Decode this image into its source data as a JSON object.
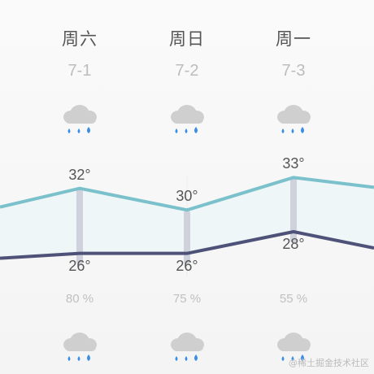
{
  "forecast": {
    "days": [
      {
        "day": "周六",
        "date": "7-1",
        "high": "32°",
        "low": "26°",
        "humidity": "80 %",
        "icon_top": "rain-cloud-icon",
        "icon_bottom": "rain-cloud-icon"
      },
      {
        "day": "周日",
        "date": "7-2",
        "high": "30°",
        "low": "26°",
        "humidity": "75 %",
        "icon_top": "rain-cloud-icon",
        "icon_bottom": "rain-cloud-icon"
      },
      {
        "day": "周一",
        "date": "7-3",
        "high": "33°",
        "low": "28°",
        "humidity": "55 %",
        "icon_top": "rain-cloud-icon",
        "icon_bottom": "rain-cloud-icon"
      }
    ]
  },
  "watermark": "@稀土掘金技术社区",
  "colors": {
    "high_line": "#7bc1cb",
    "low_line": "#4e5278",
    "area_fill": "#eef6f8",
    "cloud": "#cfcfcf",
    "drop": "#3b8ee6",
    "range_bar": "#cfd2dc"
  },
  "chart_data": {
    "type": "line",
    "categories": [
      "周六",
      "周日",
      "周一"
    ],
    "series": [
      {
        "values": [
          32,
          30,
          33
        ]
      },
      {
        "values": [
          26,
          26,
          28
        ]
      }
    ]
  }
}
